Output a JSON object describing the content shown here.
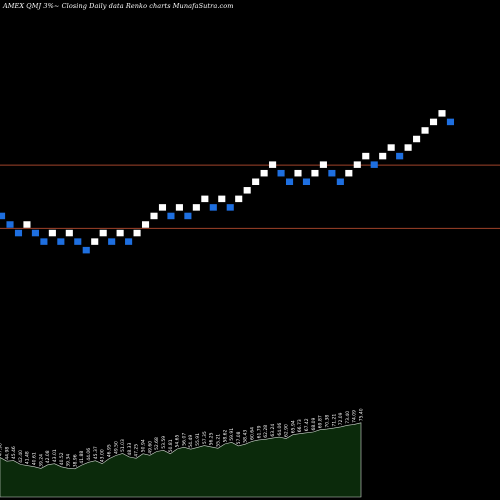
{
  "title": "AMEX  QMJ 3%~  Closing Daily data  Renko  charts MunafaSutra.com",
  "colors": {
    "background": "#000000",
    "up_brick": "#ffffff",
    "down_brick": "#1e6fe0",
    "ref_line": "#a0432a",
    "volume_fill": "#0b2a0b",
    "volume_stroke": "#cfd8cf"
  },
  "chart_data": {
    "type": "renko",
    "xlabel": "",
    "ylabel": "",
    "grid": false,
    "legend": "none",
    "ylim": [
      20,
      50
    ],
    "bricks": [
      {
        "dir": "down",
        "value": 30.5
      },
      {
        "dir": "down",
        "value": 30.0
      },
      {
        "dir": "down",
        "value": 29.5
      },
      {
        "dir": "up",
        "value": 30.0
      },
      {
        "dir": "down",
        "value": 29.5
      },
      {
        "dir": "down",
        "value": 29.0
      },
      {
        "dir": "up",
        "value": 29.5
      },
      {
        "dir": "down",
        "value": 29.0
      },
      {
        "dir": "up",
        "value": 29.5
      },
      {
        "dir": "down",
        "value": 29.0
      },
      {
        "dir": "down",
        "value": 28.5
      },
      {
        "dir": "up",
        "value": 29.0
      },
      {
        "dir": "up",
        "value": 29.5
      },
      {
        "dir": "down",
        "value": 29.0
      },
      {
        "dir": "up",
        "value": 29.5
      },
      {
        "dir": "down",
        "value": 29.0
      },
      {
        "dir": "up",
        "value": 29.5
      },
      {
        "dir": "up",
        "value": 30.0
      },
      {
        "dir": "up",
        "value": 30.5
      },
      {
        "dir": "up",
        "value": 31.0
      },
      {
        "dir": "down",
        "value": 30.5
      },
      {
        "dir": "up",
        "value": 31.0
      },
      {
        "dir": "down",
        "value": 30.5
      },
      {
        "dir": "up",
        "value": 31.0
      },
      {
        "dir": "up",
        "value": 31.5
      },
      {
        "dir": "down",
        "value": 31.0
      },
      {
        "dir": "up",
        "value": 31.5
      },
      {
        "dir": "down",
        "value": 31.0
      },
      {
        "dir": "up",
        "value": 31.5
      },
      {
        "dir": "up",
        "value": 32.0
      },
      {
        "dir": "up",
        "value": 32.5
      },
      {
        "dir": "up",
        "value": 33.0
      },
      {
        "dir": "up",
        "value": 33.5
      },
      {
        "dir": "down",
        "value": 33.0
      },
      {
        "dir": "down",
        "value": 32.5
      },
      {
        "dir": "up",
        "value": 33.0
      },
      {
        "dir": "down",
        "value": 32.5
      },
      {
        "dir": "up",
        "value": 33.0
      },
      {
        "dir": "up",
        "value": 33.5
      },
      {
        "dir": "down",
        "value": 33.0
      },
      {
        "dir": "down",
        "value": 32.5
      },
      {
        "dir": "up",
        "value": 33.0
      },
      {
        "dir": "up",
        "value": 33.5
      },
      {
        "dir": "up",
        "value": 34.0
      },
      {
        "dir": "down",
        "value": 33.5
      },
      {
        "dir": "up",
        "value": 34.0
      },
      {
        "dir": "up",
        "value": 34.5
      },
      {
        "dir": "down",
        "value": 34.0
      },
      {
        "dir": "up",
        "value": 34.5
      },
      {
        "dir": "up",
        "value": 35.0
      },
      {
        "dir": "up",
        "value": 35.5
      },
      {
        "dir": "up",
        "value": 36.0
      },
      {
        "dir": "up",
        "value": 36.5
      },
      {
        "dir": "down",
        "value": 36.0
      }
    ],
    "reference_lines": [
      33.5,
      29.8
    ],
    "volume_labels": [
      "47.90",
      "44.98",
      "45.46",
      "42.40",
      "41.48",
      "40.61",
      "39.24",
      "42.08",
      "43.01",
      "40.52",
      "39.34",
      "38.96",
      "41.88",
      "44.06",
      "45.37",
      "43.00",
      "46.95",
      "49.50",
      "51.03",
      "48.33",
      "47.25",
      "50.94",
      "49.60",
      "52.68",
      "53.59",
      "50.81",
      "54.65",
      "56.07",
      "54.49",
      "55.91",
      "57.35",
      "56.25",
      "55.21",
      "58.62",
      "59.91",
      "57.08",
      "58.43",
      "60.64",
      "61.79",
      "62.28",
      "63.24",
      "64.06",
      "62.90",
      "65.94",
      "66.73",
      "67.42",
      "68.09",
      "69.87",
      "70.38",
      "71.21",
      "72.09",
      "73.40",
      "74.09",
      "75.40"
    ]
  }
}
